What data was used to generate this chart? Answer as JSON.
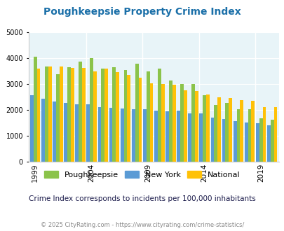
{
  "title": "Poughkeepsie Property Crime Index",
  "subtitle": "Crime Index corresponds to incidents per 100,000 inhabitants",
  "footer": "© 2025 CityRating.com - https://www.cityrating.com/crime-statistics/",
  "years": [
    1999,
    2000,
    2001,
    2002,
    2003,
    2004,
    2005,
    2006,
    2007,
    2008,
    2009,
    2010,
    2011,
    2012,
    2013,
    2014,
    2015,
    2016,
    2017,
    2018,
    2019,
    2020
  ],
  "poughkeepsie": [
    4060,
    3670,
    3370,
    3650,
    3870,
    4000,
    3600,
    3650,
    3550,
    3800,
    3490,
    3600,
    3150,
    3000,
    2990,
    2560,
    2200,
    2260,
    2030,
    2020,
    1670,
    1620
  ],
  "new_york": [
    2560,
    2440,
    2340,
    2280,
    2230,
    2230,
    2110,
    2090,
    2060,
    2020,
    2020,
    1970,
    1950,
    1980,
    1870,
    1860,
    1710,
    1640,
    1570,
    1520,
    1490,
    1400
  ],
  "national": [
    3600,
    3670,
    3670,
    3620,
    3620,
    3500,
    3600,
    3460,
    3350,
    3260,
    3040,
    2990,
    2970,
    2770,
    2740,
    2610,
    2500,
    2460,
    2380,
    2350,
    2110,
    2110
  ],
  "poughkeepsie_color": "#8bc34a",
  "new_york_color": "#5b9bd5",
  "national_color": "#ffc107",
  "bg_color": "#e8f4f8",
  "ylim": [
    0,
    5000
  ],
  "yticks": [
    0,
    1000,
    2000,
    3000,
    4000,
    5000
  ],
  "xtick_years": [
    1999,
    2004,
    2009,
    2014,
    2019
  ],
  "title_color": "#1a6fa8",
  "subtitle_color": "#1a1a4a",
  "footer_color": "#888888",
  "bar_order": [
    "new_york",
    "poughkeepsie",
    "national"
  ]
}
